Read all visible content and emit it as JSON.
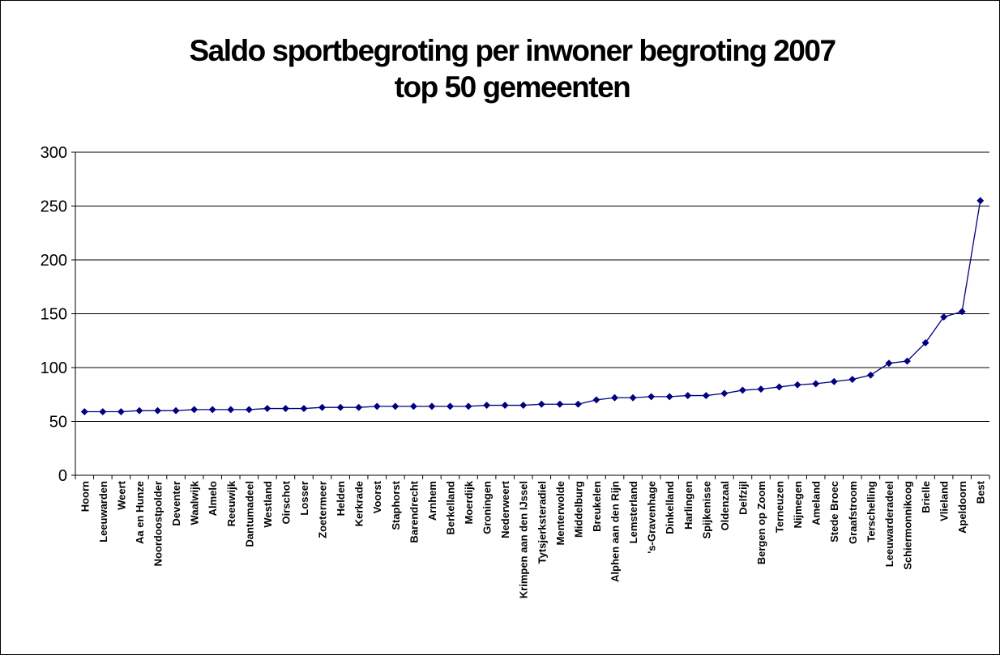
{
  "chart_data": {
    "type": "line",
    "title": "Saldo sportbegroting per inwoner begroting 2007",
    "subtitle": "top 50 gemeenten",
    "xlabel": "",
    "ylabel": "",
    "ylim": [
      0,
      300
    ],
    "yticks": [
      "0",
      "50",
      "100",
      "150",
      "200",
      "250",
      "300"
    ],
    "grid": true,
    "legend": "none",
    "line_color": "#000080",
    "marker": "diamond",
    "categories": [
      "Hoorn",
      "Leeuwarden",
      "Weert",
      "Aa en Hunze",
      "Noordoostpolder",
      "Deventer",
      "Waalwijk",
      "Almelo",
      "Reeuwijk",
      "Dantumadeel",
      "Westland",
      "Oirschot",
      "Losser",
      "Zoetermeer",
      "Helden",
      "Kerkrade",
      "Voorst",
      "Staphorst",
      "Barendrecht",
      "Arnhem",
      "Berkelland",
      "Moerdijk",
      "Groningen",
      "Nederweert",
      "Krimpen aan den IJssel",
      "Tytsjerksteradiel",
      "Menterwolde",
      "Middelburg",
      "Breukelen",
      "Alphen aan den Rijn",
      "Lemsterland",
      "'s-Gravenhage",
      "Dinkelland",
      "Harlingen",
      "Spijkenisse",
      "Oldenzaal",
      "Delfzijl",
      "Bergen op Zoom",
      "Terneuzen",
      "Nijmegen",
      "Ameland",
      "Stede Broec",
      "Graafstroom",
      "Terschelling",
      "Leeuwarderadeel",
      "Schiermonnikoog",
      "Brielle",
      "Vlieland",
      "Apeldoorn",
      "Best"
    ],
    "values": [
      59,
      59,
      59,
      60,
      60,
      60,
      61,
      61,
      61,
      61,
      62,
      62,
      62,
      63,
      63,
      63,
      64,
      64,
      64,
      64,
      64,
      64,
      65,
      65,
      65,
      66,
      66,
      66,
      70,
      72,
      72,
      73,
      73,
      74,
      74,
      76,
      79,
      80,
      82,
      84,
      85,
      87,
      89,
      93,
      104,
      106,
      123,
      147,
      152,
      255
    ]
  }
}
